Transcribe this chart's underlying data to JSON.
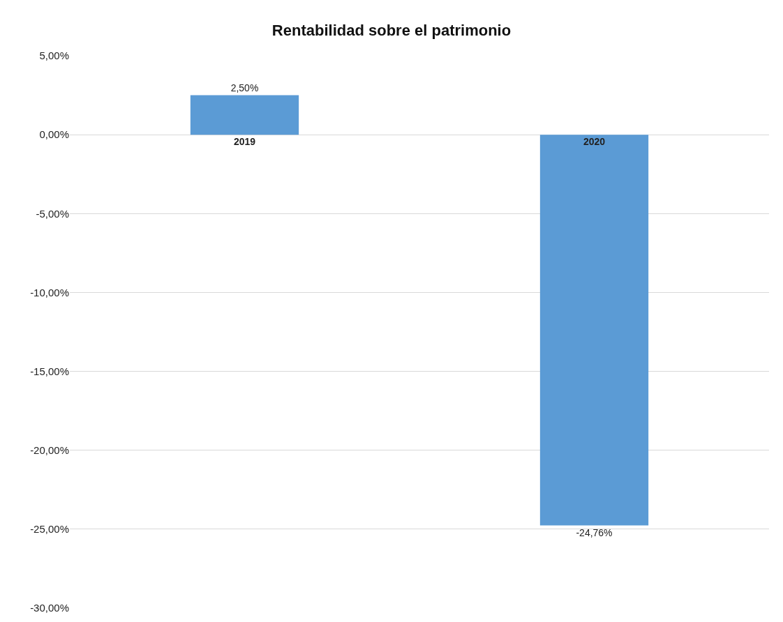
{
  "chart_data": {
    "type": "bar",
    "title": "Rentabilidad sobre el patrimonio",
    "categories": [
      "2019",
      "2020"
    ],
    "values": [
      2.5,
      -24.76
    ],
    "value_labels": [
      "2,50%",
      "-24,76%"
    ],
    "color": "#5b9bd5",
    "ylim": [
      -30,
      5
    ],
    "yticks": [
      {
        "value": 5,
        "label": "5,00%"
      },
      {
        "value": 0,
        "label": "0,00%"
      },
      {
        "value": -5,
        "label": "-5,00%"
      },
      {
        "value": -10,
        "label": "-10,00%"
      },
      {
        "value": -15,
        "label": "-15,00%"
      },
      {
        "value": -20,
        "label": "-20,00%"
      },
      {
        "value": -25,
        "label": "-25,00%"
      },
      {
        "value": -30,
        "label": "-30,00%"
      }
    ],
    "grid": "y"
  }
}
